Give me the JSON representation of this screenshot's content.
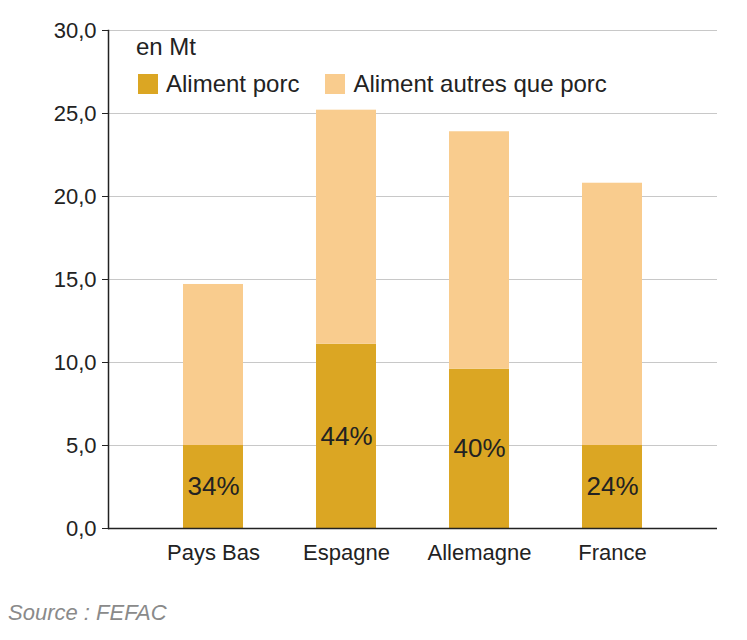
{
  "chart_data": {
    "type": "bar",
    "stacked": true,
    "ylabel": "en Mt",
    "source": "Source : FEFAC",
    "categories": [
      "Pays Bas",
      "Espagne",
      "Allemagne",
      "France"
    ],
    "series": [
      {
        "name": "Aliment porc",
        "color": "#dba623",
        "values": [
          5.0,
          11.1,
          9.6,
          5.0
        ],
        "shares": [
          {
            "value": 34,
            "label": "34%"
          },
          {
            "value": 44,
            "label": "44%"
          },
          {
            "value": 40,
            "label": "40%"
          },
          {
            "value": 24,
            "label": "24%"
          }
        ]
      },
      {
        "name": "Aliment autres que porc",
        "color": "#f9cc8e",
        "values": [
          9.7,
          14.1,
          14.3,
          15.8
        ]
      }
    ],
    "ylim": [
      0,
      30
    ],
    "yticks": [
      {
        "value": 0,
        "label": "0,0"
      },
      {
        "value": 5,
        "label": "5,0"
      },
      {
        "value": 10,
        "label": "10,0"
      },
      {
        "value": 15,
        "label": "15,0"
      },
      {
        "value": 20,
        "label": "20,0"
      },
      {
        "value": 25,
        "label": "25,0"
      },
      {
        "value": 30,
        "label": "30,0"
      }
    ],
    "grid": true,
    "legend": "top-left"
  }
}
